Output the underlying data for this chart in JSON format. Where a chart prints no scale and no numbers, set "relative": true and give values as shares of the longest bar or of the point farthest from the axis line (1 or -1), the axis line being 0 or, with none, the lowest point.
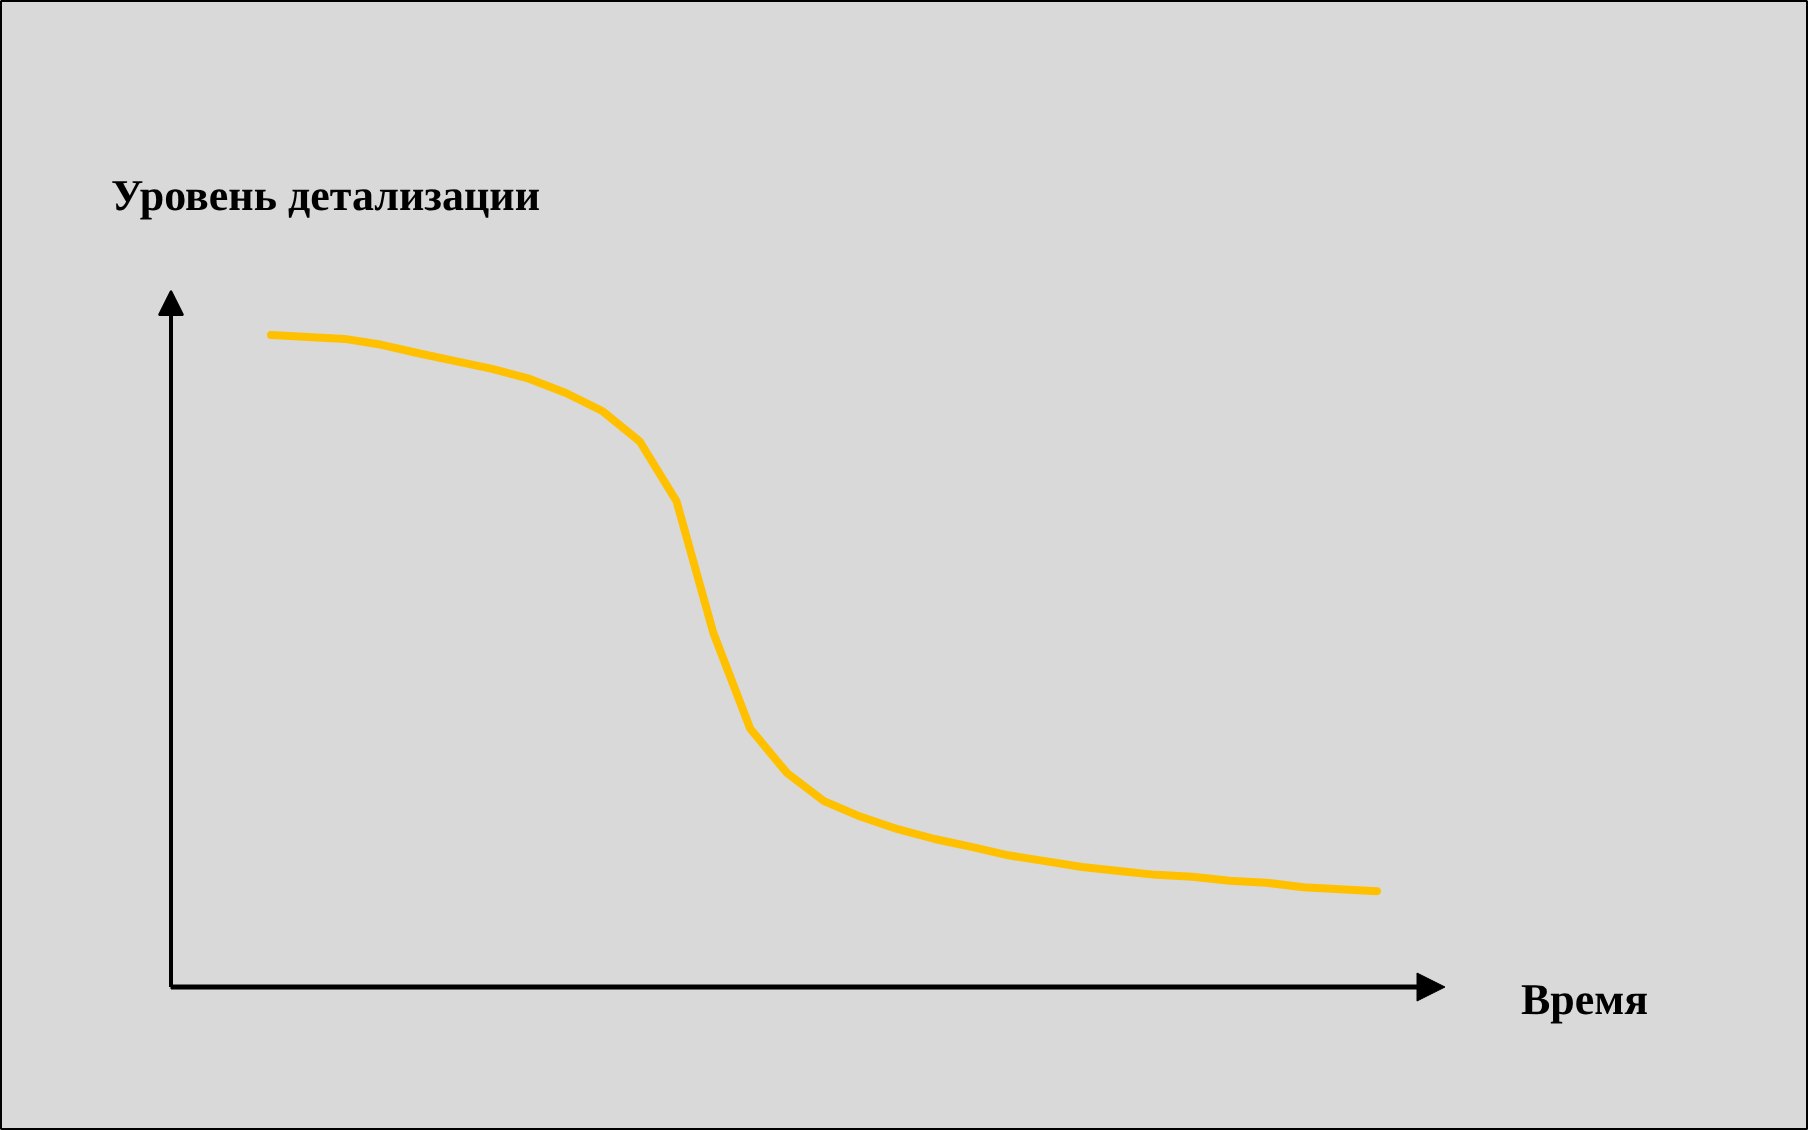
{
  "chart_data": {
    "type": "line",
    "relative": true,
    "xlabel": "Время",
    "ylabel": "Уровень детализации",
    "color": "#ffc000",
    "categories": [
      null,
      null,
      null,
      null,
      null,
      null,
      null,
      null,
      null,
      null,
      null,
      null,
      null,
      null,
      null,
      null,
      null,
      null,
      null,
      null,
      null,
      null,
      null,
      null,
      null,
      null,
      null,
      null,
      null,
      null,
      null
    ],
    "values": [
      1.0,
      0.997,
      0.994,
      0.985,
      0.972,
      0.96,
      0.948,
      0.933,
      0.911,
      0.883,
      0.837,
      0.745,
      0.543,
      0.396,
      0.328,
      0.285,
      0.261,
      0.242,
      0.227,
      0.215,
      0.202,
      0.193,
      0.184,
      0.178,
      0.172,
      0.169,
      0.163,
      0.16,
      0.153,
      0.15,
      0.147
    ]
  }
}
